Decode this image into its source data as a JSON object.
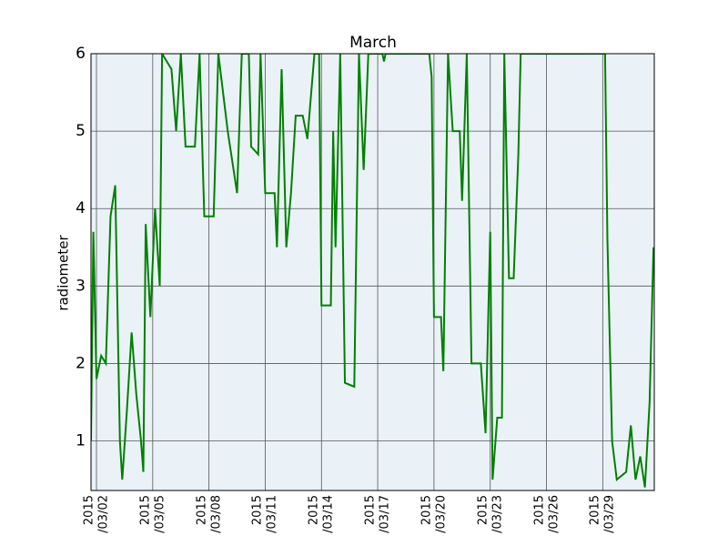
{
  "chart_data": {
    "type": "line",
    "title": "March",
    "y_label": "radiometer",
    "x": [
      "2015-03-01T17:00",
      "2015-03-01T20:00",
      "2015-03-02T00:00",
      "2015-03-02T06:00",
      "2015-03-02T12:00",
      "2015-03-02T18:00",
      "2015-03-03T00:00",
      "2015-03-03T06:00",
      "2015-03-03T09:00",
      "2015-03-03T15:00",
      "2015-03-03T21:00",
      "2015-03-04T03:00",
      "2015-03-04T09:00",
      "2015-03-04T12:00",
      "2015-03-04T15:00",
      "2015-03-04T21:00",
      "2015-03-05T03:00",
      "2015-03-05T09:00",
      "2015-03-05T12:00",
      "2015-03-06T00:00",
      "2015-03-06T06:00",
      "2015-03-06T12:00",
      "2015-03-06T18:00",
      "2015-03-07T06:00",
      "2015-03-07T12:00",
      "2015-03-07T18:00",
      "2015-03-08T06:00",
      "2015-03-08T12:00",
      "2015-03-09T00:00",
      "2015-03-09T12:00",
      "2015-03-09T18:00",
      "2015-03-10T03:00",
      "2015-03-10T06:00",
      "2015-03-10T15:00",
      "2015-03-10T18:00",
      "2015-03-11T00:00",
      "2015-03-11T12:00",
      "2015-03-11T15:00",
      "2015-03-11T21:00",
      "2015-03-12T03:00",
      "2015-03-12T09:00",
      "2015-03-12T15:00",
      "2015-03-13T00:00",
      "2015-03-13T06:00",
      "2015-03-13T15:00",
      "2015-03-13T21:00",
      "2015-03-14T00:00",
      "2015-03-14T12:00",
      "2015-03-14T15:00",
      "2015-03-14T18:00",
      "2015-03-15T00:00",
      "2015-03-15T06:00",
      "2015-03-15T18:00",
      "2015-03-16T00:00",
      "2015-03-16T06:00",
      "2015-03-16T12:00",
      "2015-03-17T06:00",
      "2015-03-17T08:00",
      "2015-03-17T10:00",
      "2015-03-19T18:00",
      "2015-03-19T21:00",
      "2015-03-20T00:00",
      "2015-03-20T09:00",
      "2015-03-20T12:00",
      "2015-03-20T18:00",
      "2015-03-21T00:00",
      "2015-03-21T09:00",
      "2015-03-21T12:00",
      "2015-03-21T18:00",
      "2015-03-22T00:00",
      "2015-03-22T12:00",
      "2015-03-22T18:00",
      "2015-03-23T00:00",
      "2015-03-23T03:00",
      "2015-03-23T09:00",
      "2015-03-23T15:00",
      "2015-03-23T18:00",
      "2015-03-24T00:00",
      "2015-03-24T06:00",
      "2015-03-24T12:00",
      "2015-03-24T15:00",
      "2015-03-29T03:00",
      "2015-03-29T06:00",
      "2015-03-29T12:00",
      "2015-03-29T18:00",
      "2015-03-30T06:00",
      "2015-03-30T12:00",
      "2015-03-30T18:00",
      "2015-03-31T00:00",
      "2015-03-31T06:00",
      "2015-03-31T12:00",
      "2015-03-31T17:00"
    ],
    "series": [
      {
        "name": "radiometer",
        "color": "#008000",
        "values": [
          1.0,
          3.7,
          1.8,
          2.1,
          2.0,
          3.9,
          4.3,
          1.0,
          0.5,
          1.4,
          2.4,
          1.6,
          1.0,
          0.6,
          3.8,
          2.6,
          4.0,
          3.0,
          6,
          5.8,
          5.0,
          6,
          4.8,
          4.8,
          6,
          3.9,
          3.9,
          6,
          5.0,
          4.2,
          6,
          6,
          4.8,
          4.7,
          6,
          4.2,
          4.2,
          3.5,
          5.8,
          3.5,
          4.2,
          5.2,
          5.2,
          4.9,
          6,
          6,
          2.75,
          2.75,
          5.0,
          3.5,
          6,
          1.75,
          1.7,
          6,
          4.5,
          6,
          6,
          5.9,
          6,
          6,
          5.7,
          2.6,
          2.6,
          1.9,
          6,
          5.0,
          5.0,
          4.1,
          6,
          2.0,
          2.0,
          1.1,
          3.7,
          0.5,
          1.3,
          1.3,
          6,
          3.1,
          3.1,
          4.7,
          6,
          6,
          3.6,
          1.0,
          0.5,
          0.6,
          1.2,
          0.5,
          0.8,
          0.4,
          1.5,
          3.5
        ]
      }
    ],
    "xlim": [
      "2015-03-01T17:00",
      "2015-03-31T18:00"
    ],
    "xticks": [
      {
        "value": "2015-03-02",
        "label": "2015\n/03/02"
      },
      {
        "value": "2015-03-05",
        "label": "2015\n/03/05"
      },
      {
        "value": "2015-03-08",
        "label": "2015\n/03/08"
      },
      {
        "value": "2015-03-11",
        "label": "2015\n/03/11"
      },
      {
        "value": "2015-03-14",
        "label": "2015\n/03/14"
      },
      {
        "value": "2015-03-17",
        "label": "2015\n/03/17"
      },
      {
        "value": "2015-03-20",
        "label": "2015\n/03/20"
      },
      {
        "value": "2015-03-23",
        "label": "2015\n/03/23"
      },
      {
        "value": "2015-03-26",
        "label": "2015\n/03/26"
      },
      {
        "value": "2015-03-29",
        "label": "2015\n/03/29"
      }
    ],
    "ylim": [
      0.36,
      6
    ],
    "yticks": [
      1,
      2,
      3,
      4,
      5,
      6
    ],
    "grid": true
  }
}
